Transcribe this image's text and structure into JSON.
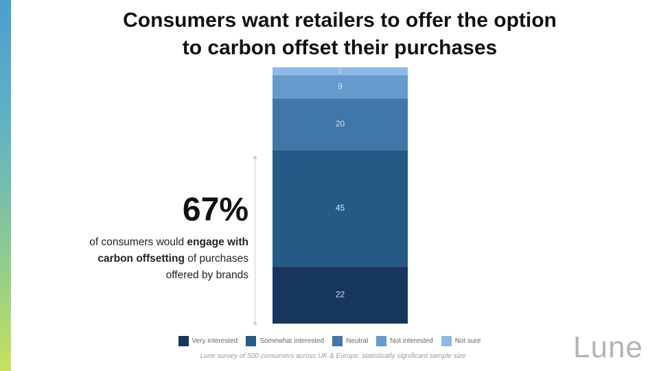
{
  "title_line1": "Consumers want retailers to offer the option",
  "title_line2": "to carbon offset their purchases",
  "callout": {
    "big_number": "67%",
    "text_pre": "of consumers would ",
    "text_bold": "engage with carbon offsetting",
    "text_post": " of purchases offered by brands"
  },
  "footnote": "Lune survey of 500 consumers across UK & Europe: statistically significant sample size",
  "logo": "Lune",
  "chart_data": {
    "type": "bar",
    "stacked": true,
    "categories": [
      ""
    ],
    "series": [
      {
        "name": "Very interested",
        "values": [
          22
        ],
        "color": "#17365d"
      },
      {
        "name": "Somewhat interested",
        "values": [
          45
        ],
        "color": "#265a86"
      },
      {
        "name": "Neutral",
        "values": [
          20
        ],
        "color": "#3f77a8"
      },
      {
        "name": "Not interested",
        "values": [
          9
        ],
        "color": "#6699cc"
      },
      {
        "name": "Not sure",
        "values": [
          3
        ],
        "color": "#8fb9e8"
      }
    ],
    "legend_position": "bottom",
    "grid": false
  }
}
